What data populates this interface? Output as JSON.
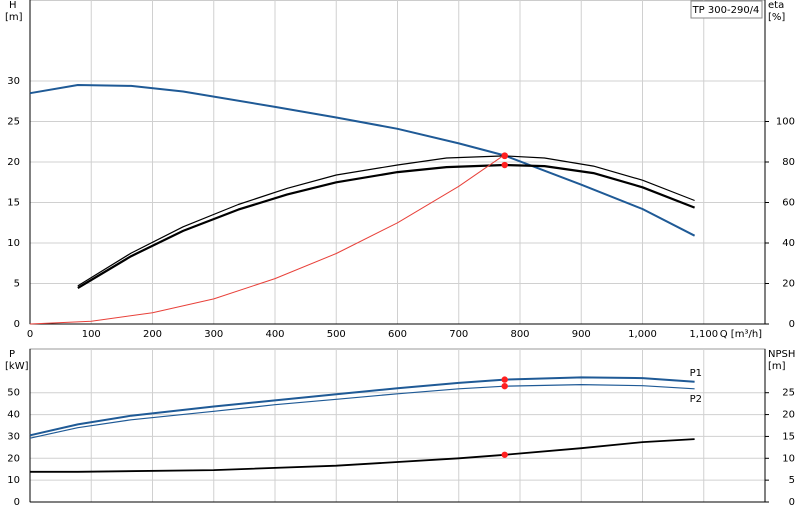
{
  "chart_data": [
    {
      "type": "line",
      "label": "TP 300-290/4",
      "ylabel": "H",
      "yunit": "[m]",
      "y2label": "eta",
      "y2unit": "[%]",
      "xlabel": "Q [m³/h]",
      "xlim": [
        0,
        1200
      ],
      "xticks": [
        0,
        100,
        200,
        300,
        400,
        500,
        600,
        700,
        800,
        900,
        {
          "value": 1000,
          "label": "1,000"
        },
        {
          "value": 1100,
          "label": "1,100"
        }
      ],
      "ylim": [
        0,
        40
      ],
      "yticks": [
        0,
        5,
        10,
        15,
        20,
        25,
        30
      ],
      "y2lim": [
        0,
        160
      ],
      "y2ticks": [
        0,
        20,
        40,
        60,
        80,
        100
      ],
      "grid": true,
      "series": [
        {
          "color": "#1f5a96",
          "width": 2,
          "axis": "y",
          "x": [
            0,
            78,
            165,
            250,
            400,
            500,
            600,
            700,
            775,
            900,
            1000,
            1085
          ],
          "values": [
            28.5,
            29.5,
            29.4,
            28.7,
            26.8,
            25.5,
            24.1,
            22.3,
            20.8,
            17.2,
            14.2,
            10.9
          ]
        },
        {
          "color": "#000000",
          "width": 1.2,
          "axis": "y2",
          "x": [
            78,
            165,
            250,
            340,
            420,
            500,
            600,
            680,
            775,
            840,
            920,
            1000,
            1085
          ],
          "values": [
            18.8,
            35,
            48,
            59,
            67,
            73.6,
            78.5,
            82,
            83,
            82,
            78,
            71,
            61
          ]
        },
        {
          "color": "#000000",
          "width": 2.2,
          "axis": "y2",
          "x": [
            78,
            165,
            250,
            340,
            420,
            500,
            600,
            680,
            775,
            840,
            920,
            1000,
            1085
          ],
          "values": [
            17.8,
            33.5,
            46,
            56.5,
            64,
            70,
            75,
            77.5,
            78.5,
            78,
            74.5,
            67.5,
            57.5
          ]
        },
        {
          "color": "#e8413a",
          "width": 1,
          "axis": "y",
          "x": [
            0,
            100,
            200,
            300,
            400,
            500,
            600,
            700,
            775
          ],
          "values": [
            0,
            0.35,
            1.4,
            3.1,
            5.6,
            8.7,
            12.5,
            17,
            20.9
          ]
        },
        {
          "style": "dot",
          "color": "#ff2020",
          "axis": "y",
          "x": [
            775
          ],
          "values": [
            20.8
          ]
        },
        {
          "style": "dot",
          "color": "#ff2020",
          "axis": "y2",
          "x": [
            775,
            775
          ],
          "values": [
            83,
            78.5
          ]
        }
      ]
    },
    {
      "type": "line",
      "ylabel": "P",
      "yunit": "[kW]",
      "y2label": "NPSH",
      "y2unit": "[m]",
      "xlim": [
        0,
        1200
      ],
      "ylim": [
        0,
        70
      ],
      "yticks": [
        0,
        10,
        20,
        30,
        40,
        50
      ],
      "y2lim": [
        0,
        35
      ],
      "y2ticks": [
        0,
        5,
        10,
        15,
        20,
        25
      ],
      "grid": true,
      "series": [
        {
          "name": "P1",
          "color": "#1f5a96",
          "width": 2,
          "axis": "y",
          "x": [
            0,
            78,
            165,
            300,
            400,
            500,
            600,
            700,
            775,
            900,
            1000,
            1085
          ],
          "values": [
            30.5,
            35.5,
            39.5,
            43.7,
            46.5,
            49.3,
            52,
            54.5,
            56,
            57,
            56.7,
            55
          ]
        },
        {
          "name": "P2",
          "color": "#1f5a96",
          "width": 1.2,
          "axis": "y",
          "x": [
            0,
            78,
            165,
            300,
            400,
            500,
            600,
            700,
            775,
            900,
            1000,
            1085
          ],
          "values": [
            29.2,
            34,
            37.6,
            41.5,
            44.5,
            47,
            49.5,
            51.8,
            53,
            53.7,
            53.2,
            51.8
          ]
        },
        {
          "color": "#000000",
          "width": 1.8,
          "axis": "y2",
          "x": [
            0,
            78,
            300,
            500,
            700,
            775,
            900,
            1000,
            1085
          ],
          "values": [
            6.9,
            6.9,
            7.3,
            8.3,
            10,
            10.8,
            12.3,
            13.7,
            14.4
          ]
        },
        {
          "style": "dot",
          "color": "#ff2020",
          "axis": "y",
          "x": [
            775,
            775
          ],
          "values": [
            56,
            53
          ]
        },
        {
          "style": "dot",
          "color": "#ff2020",
          "axis": "y2",
          "x": [
            775
          ],
          "values": [
            10.8
          ]
        }
      ]
    }
  ]
}
